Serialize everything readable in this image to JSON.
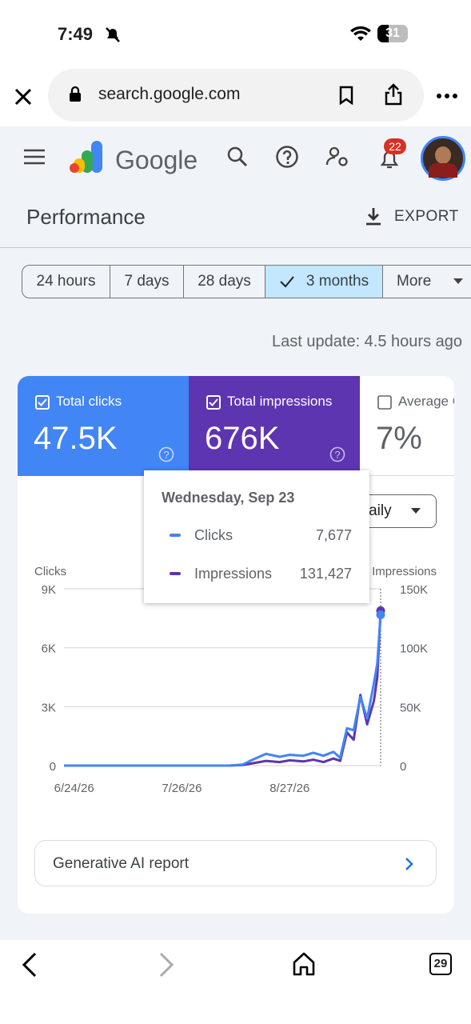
{
  "status_bar": {
    "time": "7:49",
    "battery": "31"
  },
  "browser": {
    "url": "search.google.com"
  },
  "header": {
    "logo": "Google",
    "notifications": "22"
  },
  "page": {
    "title": "Performance",
    "export": "EXPORT"
  },
  "filters": [
    "24 hours",
    "7 days",
    "28 days",
    "3 months",
    "More"
  ],
  "last_update": "Last update: 4.5 hours ago",
  "metrics": [
    {
      "label": "Total clicks",
      "value": "47.5K"
    },
    {
      "label": "Total impressions",
      "value": "676K"
    },
    {
      "label": "Average CTR",
      "value": "7%"
    }
  ],
  "granularity": "Daily",
  "tooltip": {
    "date": "Wednesday, Sep 23",
    "values": [
      "7,677",
      "131,427"
    ]
  },
  "chart_data": {
    "type": "line",
    "x": [
      "6/21/26",
      "6/28/26",
      "7/5/26",
      "7/12/26",
      "7/19/26",
      "7/26/26",
      "8/2/26",
      "8/9/26",
      "8/13/26",
      "8/16/26",
      "8/20/26",
      "8/24/26",
      "8/27/26",
      "8/31/26",
      "9/3/26",
      "9/6/26",
      "9/9/26",
      "9/11/26",
      "9/13/26",
      "9/15/26",
      "9/17/26",
      "9/19/26",
      "9/21/26",
      "9/22/26",
      "9/23/26"
    ],
    "xlim": [
      "6/21/26",
      "9/23/26"
    ],
    "xticks": [
      "6/24/26",
      "7/26/26",
      "8/27/26"
    ],
    "series": [
      {
        "name": "Clicks",
        "color": "#4285f4",
        "values": [
          0,
          0,
          0,
          0,
          0,
          0,
          0,
          0,
          50,
          300,
          600,
          450,
          550,
          500,
          650,
          500,
          700,
          400,
          1900,
          1800,
          3500,
          2400,
          4200,
          5200,
          7677
        ]
      },
      {
        "name": "Impressions",
        "color": "#5e35b1",
        "axis": "y2",
        "values": [
          0,
          0,
          0,
          0,
          0,
          0,
          0,
          0,
          500,
          2000,
          4000,
          3000,
          4500,
          3500,
          5000,
          3000,
          6000,
          4000,
          28000,
          22000,
          60000,
          35000,
          55000,
          75000,
          131427
        ]
      }
    ],
    "ylim": [
      0,
      9000
    ],
    "yticks": [
      0,
      {
        "value": 3000,
        "label": "3K"
      },
      {
        "value": 6000,
        "label": "6K"
      },
      {
        "value": 9000,
        "label": "9K"
      }
    ],
    "y2lim": [
      0,
      150000
    ],
    "y2ticks": [
      0,
      {
        "value": 50000,
        "label": "50K"
      },
      {
        "value": 100000,
        "label": "100K"
      },
      {
        "value": 150000,
        "label": "150K"
      }
    ],
    "grid": true
  },
  "report_link": "Generative AI report",
  "bottom_bar": {
    "tabs": "29"
  }
}
